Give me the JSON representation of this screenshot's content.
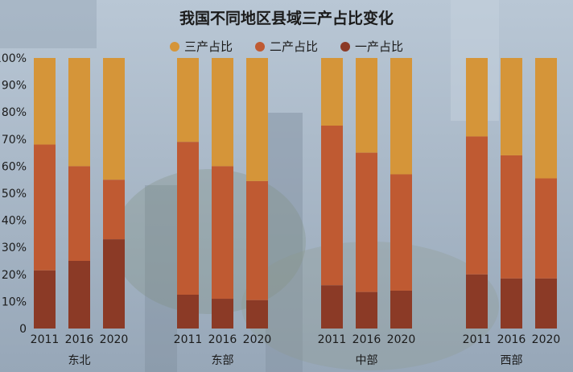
{
  "chart_data": {
    "type": "bar",
    "stacked": true,
    "title": "我国不同地区县域三产占比变化",
    "groups": [
      "东北",
      "东部",
      "中部",
      "西部"
    ],
    "categories": [
      "2011",
      "2016",
      "2020"
    ],
    "series": [
      {
        "name": "一产占比",
        "color": "#8b3a26",
        "values": [
          [
            21.5,
            25.0,
            33.0
          ],
          [
            12.5,
            11.0,
            10.5
          ],
          [
            16.0,
            13.5,
            14.0
          ],
          [
            20.0,
            18.5,
            18.5
          ]
        ]
      },
      {
        "name": "二产占比",
        "color": "#bf5a32",
        "values": [
          [
            46.5,
            35.0,
            22.0
          ],
          [
            56.5,
            49.0,
            44.0
          ],
          [
            59.0,
            51.5,
            43.0
          ],
          [
            51.0,
            45.5,
            37.0
          ]
        ]
      },
      {
        "name": "三产占比",
        "color": "#d59539",
        "values": [
          [
            32.0,
            40.0,
            45.0
          ],
          [
            31.0,
            40.0,
            45.5
          ],
          [
            25.0,
            35.0,
            43.0
          ],
          [
            29.0,
            36.0,
            44.5
          ]
        ]
      }
    ],
    "yticks": [
      "0",
      "10%",
      "20%",
      "30%",
      "40%",
      "50%",
      "60%",
      "70%",
      "80%",
      "90%",
      "100%"
    ],
    "ylim": [
      0,
      100
    ],
    "legend_position": "top-center",
    "grid": false
  }
}
